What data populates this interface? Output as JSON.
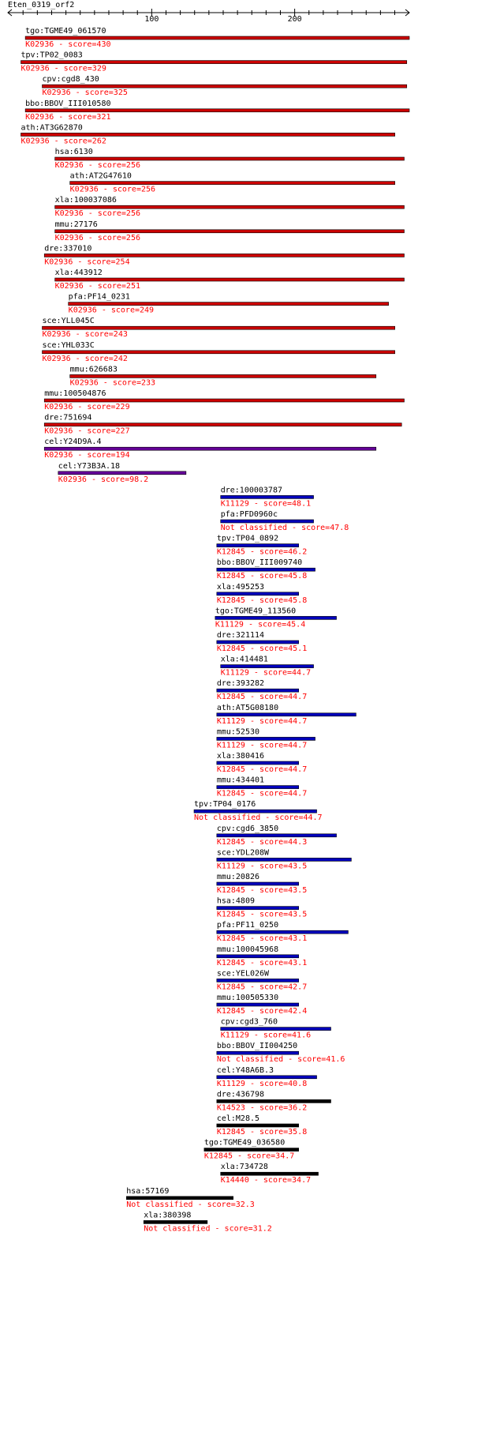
{
  "chart_data": {
    "type": "bar",
    "title": "Eten_0319_orf2",
    "x_ticks": [
      100,
      200
    ],
    "xlim": [
      -0.6,
      280.2
    ],
    "colors": {
      "red": "#cc0000",
      "purple": "#660099",
      "blue": "#0000bb",
      "black": "#000000",
      "subtitle": "#ff0000"
    },
    "hits": [
      {
        "name": "tgo:TGME49_061570",
        "subtitle": "K02936 - score=430",
        "start": 11.6,
        "end": 280.2,
        "color": "red"
      },
      {
        "name": "tpv:TP02_0083",
        "subtitle": "K02936 - score=329",
        "start": 8.5,
        "end": 278.4,
        "color": "red"
      },
      {
        "name": "cpv:cgd8_430",
        "subtitle": "K02936 - score=325",
        "start": 23.4,
        "end": 278.4,
        "color": "red"
      },
      {
        "name": "bbo:BBOV_III010580",
        "subtitle": "K02936 - score=321",
        "start": 11.6,
        "end": 280.2,
        "color": "red"
      },
      {
        "name": "ath:AT3G62870",
        "subtitle": "K02936 - score=262",
        "start": 8.5,
        "end": 270.1,
        "color": "red"
      },
      {
        "name": "hsa:6130",
        "subtitle": "K02936 - score=256",
        "start": 32.3,
        "end": 276.6,
        "color": "red"
      },
      {
        "name": "ath:AT2G47610",
        "subtitle": "K02936 - score=256",
        "start": 42.8,
        "end": 270.1,
        "color": "red"
      },
      {
        "name": "xla:100037086",
        "subtitle": "K02936 - score=256",
        "start": 32.3,
        "end": 276.6,
        "color": "red"
      },
      {
        "name": "mmu:27176",
        "subtitle": "K02936 - score=256",
        "start": 32.3,
        "end": 276.6,
        "color": "red"
      },
      {
        "name": "dre:337010",
        "subtitle": "K02936 - score=254",
        "start": 24.9,
        "end": 276.6,
        "color": "red"
      },
      {
        "name": "xla:443912",
        "subtitle": "K02936 - score=251",
        "start": 32.3,
        "end": 276.6,
        "color": "red"
      },
      {
        "name": "pfa:PF14_0231",
        "subtitle": "K02936 - score=249",
        "start": 41.7,
        "end": 265.7,
        "color": "red"
      },
      {
        "name": "sce:YLL045C",
        "subtitle": "K02936 - score=243",
        "start": 23.4,
        "end": 270.1,
        "color": "red"
      },
      {
        "name": "sce:YHL033C",
        "subtitle": "K02936 - score=242",
        "start": 23.4,
        "end": 270.1,
        "color": "red"
      },
      {
        "name": "mmu:626683",
        "subtitle": "K02936 - score=233",
        "start": 42.8,
        "end": 256.9,
        "color": "red"
      },
      {
        "name": "mmu:100504876",
        "subtitle": "K02936 - score=229",
        "start": 24.9,
        "end": 276.6,
        "color": "red"
      },
      {
        "name": "dre:751694",
        "subtitle": "K02936 - score=227",
        "start": 24.9,
        "end": 274.8,
        "color": "red"
      },
      {
        "name": "cel:Y24D9A.4",
        "subtitle": "K02936 - score=194",
        "start": 24.9,
        "end": 256.9,
        "color": "purple"
      },
      {
        "name": "cel:Y73B3A.18",
        "subtitle": "K02936 - score=98.2",
        "start": 34.6,
        "end": 124.0,
        "color": "purple"
      },
      {
        "name": "dre:100003787",
        "subtitle": "K11129 - score=48.1",
        "start": 148.2,
        "end": 213.2,
        "color": "blue"
      },
      {
        "name": "pfa:PFD0960c",
        "subtitle": "Not classified - score=47.8",
        "start": 148.2,
        "end": 213.2,
        "color": "blue"
      },
      {
        "name": "tpv:TP04_0892",
        "subtitle": "K12845 - score=46.2",
        "start": 145.5,
        "end": 202.8,
        "color": "blue"
      },
      {
        "name": "bbo:BBOV_III009740",
        "subtitle": "K12845 - score=45.8",
        "start": 145.5,
        "end": 214.3,
        "color": "blue"
      },
      {
        "name": "xla:495253",
        "subtitle": "K12845 - score=45.8",
        "start": 145.5,
        "end": 202.8,
        "color": "blue"
      },
      {
        "name": "tgo:TGME49_113560",
        "subtitle": "K11129 - score=45.4",
        "start": 144.4,
        "end": 229.2,
        "color": "blue"
      },
      {
        "name": "dre:321114",
        "subtitle": "K12845 - score=45.1",
        "start": 145.5,
        "end": 202.8,
        "color": "blue"
      },
      {
        "name": "xla:414481",
        "subtitle": "K11129 - score=44.7",
        "start": 148.2,
        "end": 213.2,
        "color": "blue"
      },
      {
        "name": "dre:393282",
        "subtitle": "K12845 - score=44.7",
        "start": 145.5,
        "end": 202.8,
        "color": "blue"
      },
      {
        "name": "ath:AT5G08180",
        "subtitle": "K11129 - score=44.7",
        "start": 145.5,
        "end": 242.9,
        "color": "blue"
      },
      {
        "name": "mmu:52530",
        "subtitle": "K11129 - score=44.7",
        "start": 145.5,
        "end": 214.3,
        "color": "blue"
      },
      {
        "name": "xla:380416",
        "subtitle": "K12845 - score=44.7",
        "start": 145.5,
        "end": 202.8,
        "color": "blue"
      },
      {
        "name": "mmu:434401",
        "subtitle": "K12845 - score=44.7",
        "start": 145.5,
        "end": 202.8,
        "color": "blue"
      },
      {
        "name": "tpv:TP04_0176",
        "subtitle": "Not classified - score=44.7",
        "start": 129.6,
        "end": 215.4,
        "color": "blue"
      },
      {
        "name": "cpv:cgd6_3850",
        "subtitle": "K12845 - score=44.3",
        "start": 145.5,
        "end": 229.2,
        "color": "blue"
      },
      {
        "name": "sce:YDL208W",
        "subtitle": "K11129 - score=43.5",
        "start": 145.5,
        "end": 239.6,
        "color": "blue"
      },
      {
        "name": "mmu:20826",
        "subtitle": "K12845 - score=43.5",
        "start": 145.5,
        "end": 202.8,
        "color": "blue"
      },
      {
        "name": "hsa:4809",
        "subtitle": "K12845 - score=43.5",
        "start": 145.5,
        "end": 202.8,
        "color": "blue"
      },
      {
        "name": "pfa:PF11_0250",
        "subtitle": "K12845 - score=43.1",
        "start": 145.5,
        "end": 237.4,
        "color": "blue"
      },
      {
        "name": "mmu:100045968",
        "subtitle": "K12845 - score=43.1",
        "start": 145.5,
        "end": 202.8,
        "color": "blue"
      },
      {
        "name": "sce:YEL026W",
        "subtitle": "K12845 - score=42.7",
        "start": 145.5,
        "end": 202.8,
        "color": "blue"
      },
      {
        "name": "mmu:100505330",
        "subtitle": "K12845 - score=42.4",
        "start": 145.5,
        "end": 202.8,
        "color": "blue"
      },
      {
        "name": "cpv:cgd3_760",
        "subtitle": "K11129 - score=41.6",
        "start": 148.2,
        "end": 225.3,
        "color": "blue"
      },
      {
        "name": "bbo:BBOV_II004250",
        "subtitle": "Not classified - score=41.6",
        "start": 145.5,
        "end": 202.8,
        "color": "blue"
      },
      {
        "name": "cel:Y48A6B.3",
        "subtitle": "K11129 - score=40.8",
        "start": 145.5,
        "end": 215.4,
        "color": "blue"
      },
      {
        "name": "dre:436798",
        "subtitle": "K14523 - score=36.2",
        "start": 145.5,
        "end": 225.3,
        "color": "black"
      },
      {
        "name": "cel:M28.5",
        "subtitle": "K12845 - score=35.8",
        "start": 145.5,
        "end": 202.8,
        "color": "black"
      },
      {
        "name": "tgo:TGME49_036580",
        "subtitle": "K12845 - score=34.7",
        "start": 136.7,
        "end": 202.8,
        "color": "black"
      },
      {
        "name": "xla:734728",
        "subtitle": "K14440 - score=34.7",
        "start": 148.2,
        "end": 216.5,
        "color": "black"
      },
      {
        "name": "hsa:57169",
        "subtitle": "Not classified - score=32.3",
        "start": 82.3,
        "end": 157.0,
        "color": "black"
      },
      {
        "name": "xla:380398",
        "subtitle": "Not classified - score=31.2",
        "start": 94.4,
        "end": 138.9,
        "color": "black"
      }
    ]
  }
}
